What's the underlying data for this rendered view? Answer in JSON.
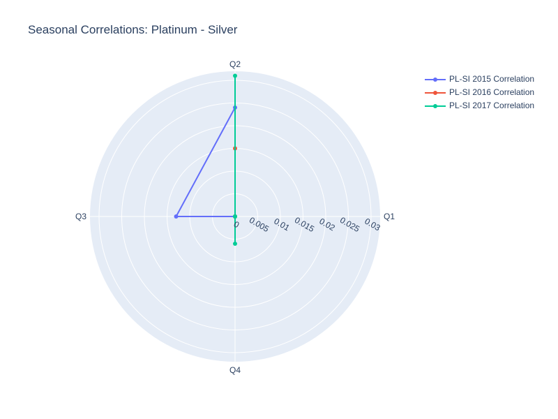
{
  "chart_data": {
    "type": "polar-line",
    "title": "Seasonal Correlations: Platinum - Silver",
    "angular_categories": [
      "Q1",
      "Q2",
      "Q3",
      "Q4"
    ],
    "angular_direction": "counterclockwise",
    "angular_rotation_deg": 0,
    "radial_range": [
      0,
      0.032
    ],
    "radial_ticks": [
      0,
      0.005,
      0.01,
      0.015,
      0.02,
      0.025,
      0.03
    ],
    "radial_tick_labels": [
      "0",
      "0.005",
      "0.01",
      "0.015",
      "0.02",
      "0.025",
      "0.03"
    ],
    "legend_position": "top-right",
    "grid": true,
    "series": [
      {
        "name": "PL-SI 2015 Correlation",
        "color": "#636efa",
        "theta": [
          "Q1",
          "Q2",
          "Q3",
          "Q4"
        ],
        "r": [
          0,
          0.024,
          0.013,
          0
        ]
      },
      {
        "name": "PL-SI 2016 Correlation",
        "color": "#ef553b",
        "theta": [
          "Q1",
          "Q2",
          "Q3",
          "Q4"
        ],
        "r": [
          0,
          0.015,
          0,
          0
        ]
      },
      {
        "name": "PL-SI 2017 Correlation",
        "color": "#00cc96",
        "theta": [
          "Q1",
          "Q2",
          "Q3",
          "Q4"
        ],
        "r": [
          0,
          0.031,
          0,
          0.006
        ]
      }
    ]
  }
}
